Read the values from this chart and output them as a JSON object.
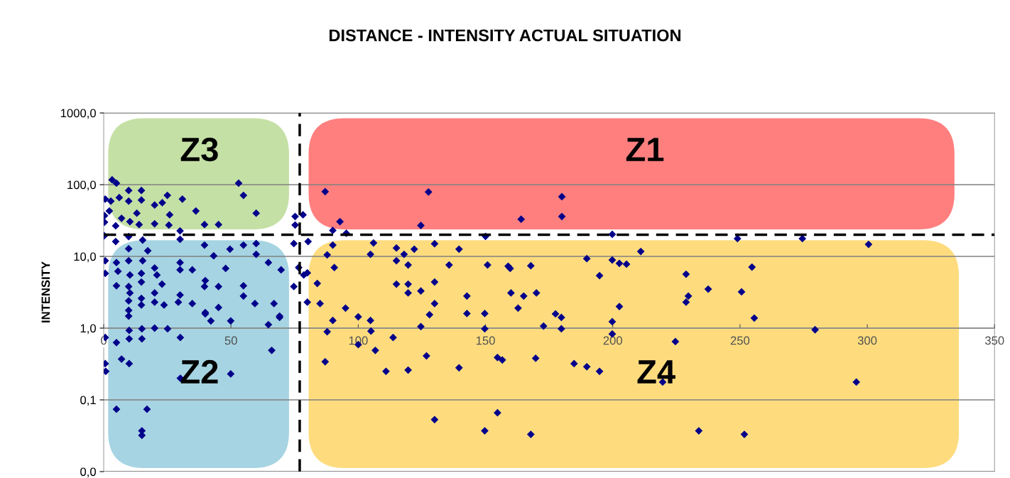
{
  "chart_data": {
    "type": "scatter",
    "title": "DISTANCE - INTENSITY ACTUAL SITUATION",
    "ylabel": "INTENSITY",
    "marker": "diamond",
    "log": "y",
    "grid": "y",
    "xlim": [
      0,
      350
    ],
    "xticks": [
      0,
      50,
      100,
      150,
      200,
      250,
      300,
      350
    ],
    "ylim": [
      0.01,
      1000
    ],
    "yticks": [
      {
        "value": 0.01,
        "label": "0,0"
      },
      {
        "value": 0.1,
        "label": "0,1"
      },
      {
        "value": 1,
        "label": "1,0"
      },
      {
        "value": 10,
        "label": "10,0"
      },
      {
        "value": 100,
        "label": "100,0"
      },
      {
        "value": 1000,
        "label": "1000,0"
      }
    ],
    "ref_lines": [
      {
        "axis": "x",
        "value": 77,
        "line_style": "dashed",
        "color": "#000000"
      },
      {
        "axis": "y",
        "value": 20,
        "line_style": "dashed",
        "color": "#000000"
      }
    ],
    "annotations": [
      "Z3",
      "Z1",
      "Z2",
      "Z4"
    ],
    "series": [
      {
        "color": "#00008b",
        "x": [
          87,
          127.6,
          180,
          180,
          164,
          124.6,
          92.8,
          90,
          78.3,
          95.3,
          150,
          249,
          274.5,
          211,
          300.5,
          199.8,
          90,
          106,
          115,
          122,
          130,
          139.6,
          87.8,
          104.8,
          118,
          115,
          189.8,
          199.8,
          202.6,
          205.4,
          90.6,
          119.6,
          135.7,
          150.8,
          158.9,
          159.7,
          167.8,
          194.8,
          80,
          83.9,
          115,
          119.6,
          130,
          119.6,
          124.6,
          142.7,
          160,
          165,
          170,
          80,
          85,
          130,
          95,
          162.8,
          202.6,
          100,
          128,
          142.7,
          149.7,
          177.5,
          179.8,
          90,
          104.8,
          199.8,
          254.7,
          228.8,
          237.5,
          250.6,
          229.7,
          228.8,
          255.6,
          279.5,
          87.8,
          105,
          124.6,
          149.7,
          172.8,
          179.8,
          199.8,
          113.7,
          100,
          106.7,
          87,
          126.8,
          154.7,
          156.6,
          169.7,
          110.9,
          119.6,
          139.6,
          184.8,
          189.8,
          194.8,
          130,
          154.7,
          149.7,
          167.8,
          224.6,
          219.6,
          295.7,
          233.8,
          251.7,
          3.3,
          5,
          53,
          54.9,
          0.6,
          2.8,
          6.1,
          9.8,
          9.8,
          14.8,
          14.8,
          25,
          30.9,
          20,
          23,
          36.2,
          59.9,
          2.2,
          13,
          25.9,
          7,
          10.3,
          20,
          25.6,
          39.6,
          45.1,
          4.7,
          13.9,
          30,
          0.3,
          0.3,
          75.2,
          75.2,
          0.2,
          4.7,
          9.8,
          15.3,
          30,
          39.6,
          49.6,
          54.9,
          59.9,
          80.3,
          74.7,
          9.8,
          17.3,
          43.2,
          59.9,
          0.6,
          5,
          9.8,
          15.3,
          20,
          30,
          34.8,
          47.9,
          64.7,
          69.7,
          76.6,
          0.6,
          5.6,
          10.3,
          14.8,
          20.9,
          30,
          39.9,
          9.8,
          14.8,
          22.9,
          39.6,
          45.1,
          54.9,
          74.7,
          5,
          10.3,
          20,
          30,
          54.9,
          9.8,
          14.8,
          20,
          23.7,
          29.3,
          34.8,
          45.1,
          59.4,
          66.9,
          9.8,
          14.8,
          39.9,
          69.1,
          78.6,
          9.8,
          39.9,
          42.1,
          49.9,
          64.7,
          69.1,
          10,
          15,
          20,
          25.1,
          0.6,
          5,
          10,
          15,
          30.1,
          66,
          7,
          10,
          0.6,
          0.8,
          30.1,
          49.9,
          5,
          17,
          15,
          15
        ],
        "values": [
          80,
          79,
          68,
          36,
          33,
          27,
          30.5,
          23,
          38,
          21,
          19,
          17.7,
          17.7,
          11.7,
          14.7,
          20.3,
          14.4,
          15.4,
          13.1,
          12.6,
          15,
          12.6,
          10.5,
          10.7,
          10.7,
          8.7,
          9.3,
          8.9,
          8,
          7.8,
          7,
          7.6,
          7.6,
          7.6,
          7.3,
          6.8,
          7.4,
          5.4,
          5.9,
          4.2,
          4.1,
          4.1,
          4.4,
          3.1,
          3.3,
          2.8,
          3.1,
          2.8,
          3.1,
          2.3,
          2.2,
          2.2,
          1.9,
          1.9,
          2,
          1.44,
          1.54,
          1.6,
          1.6,
          1.58,
          1.41,
          1.28,
          1.28,
          1.23,
          7.1,
          5.65,
          3.5,
          3.2,
          2.8,
          2.3,
          1.38,
          0.95,
          0.89,
          0.91,
          1.05,
          0.98,
          1.07,
          0.98,
          0.83,
          0.74,
          0.59,
          0.49,
          0.34,
          0.41,
          0.39,
          0.36,
          0.38,
          0.25,
          0.26,
          0.28,
          0.32,
          0.29,
          0.25,
          0.053,
          0.066,
          0.037,
          0.033,
          0.65,
          0.177,
          0.177,
          0.037,
          0.033,
          117,
          105,
          105,
          71,
          63,
          59,
          66,
          83,
          59,
          83,
          61,
          71,
          63,
          52,
          56,
          43,
          40,
          43,
          40,
          38,
          34,
          30.5,
          28.5,
          27.3,
          27.8,
          27.8,
          26.7,
          27.8,
          22.7,
          37,
          30,
          36,
          27.4,
          19.4,
          16.1,
          18.9,
          16.9,
          17.3,
          14.4,
          12.6,
          14.4,
          15.1,
          16.1,
          15.1,
          12.8,
          12,
          10.2,
          10.7,
          8.7,
          8.2,
          8.7,
          8.7,
          6.9,
          8.2,
          6.5,
          6.8,
          8.2,
          6.5,
          7,
          5.8,
          6.2,
          5.5,
          5.8,
          5.5,
          6.5,
          4.6,
          3.8,
          4.4,
          4.1,
          3.8,
          3.8,
          3.9,
          3.8,
          3.9,
          3.1,
          3.1,
          2.9,
          2.8,
          2.4,
          2.6,
          2.3,
          2.1,
          2.3,
          2.2,
          1.94,
          2.2,
          2.2,
          1.77,
          2.1,
          1.65,
          1.47,
          5.5,
          1.47,
          1.58,
          1.26,
          1.26,
          1.12,
          1.41,
          0.93,
          0.98,
          1,
          0.98,
          0.74,
          0.63,
          0.71,
          0.71,
          0.74,
          0.49,
          0.37,
          0.32,
          0.32,
          0.25,
          0.2,
          0.23,
          0.074,
          0.074,
          0.037,
          0.032
        ]
      }
    ]
  }
}
